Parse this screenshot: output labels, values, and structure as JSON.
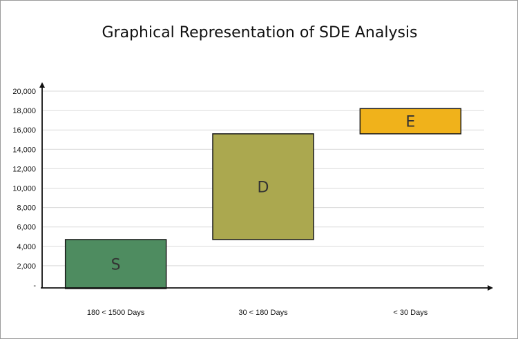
{
  "chart_data": {
    "type": "bar",
    "title": "Graphical Representation of SDE Analysis",
    "xlabel": "",
    "ylabel": "",
    "ylim": [
      0,
      20000
    ],
    "y_ticks": [
      "-",
      "2,000",
      "4,000",
      "6,000",
      "8,000",
      "10,000",
      "12,000",
      "14,000",
      "16,000",
      "18,000",
      "20,000"
    ],
    "grid": true,
    "legend": "none",
    "categories": [
      "180 < 1500 Days",
      "30 < 180 Days",
      "< 30 Days"
    ],
    "bars": [
      {
        "label": "S",
        "start": 0,
        "end": 4700,
        "color": "#4e8c60"
      },
      {
        "label": "D",
        "start": 4700,
        "end": 15600,
        "color": "#aba84f"
      },
      {
        "label": "E",
        "start": 15600,
        "end": 18200,
        "color": "#f0b21b"
      }
    ]
  }
}
